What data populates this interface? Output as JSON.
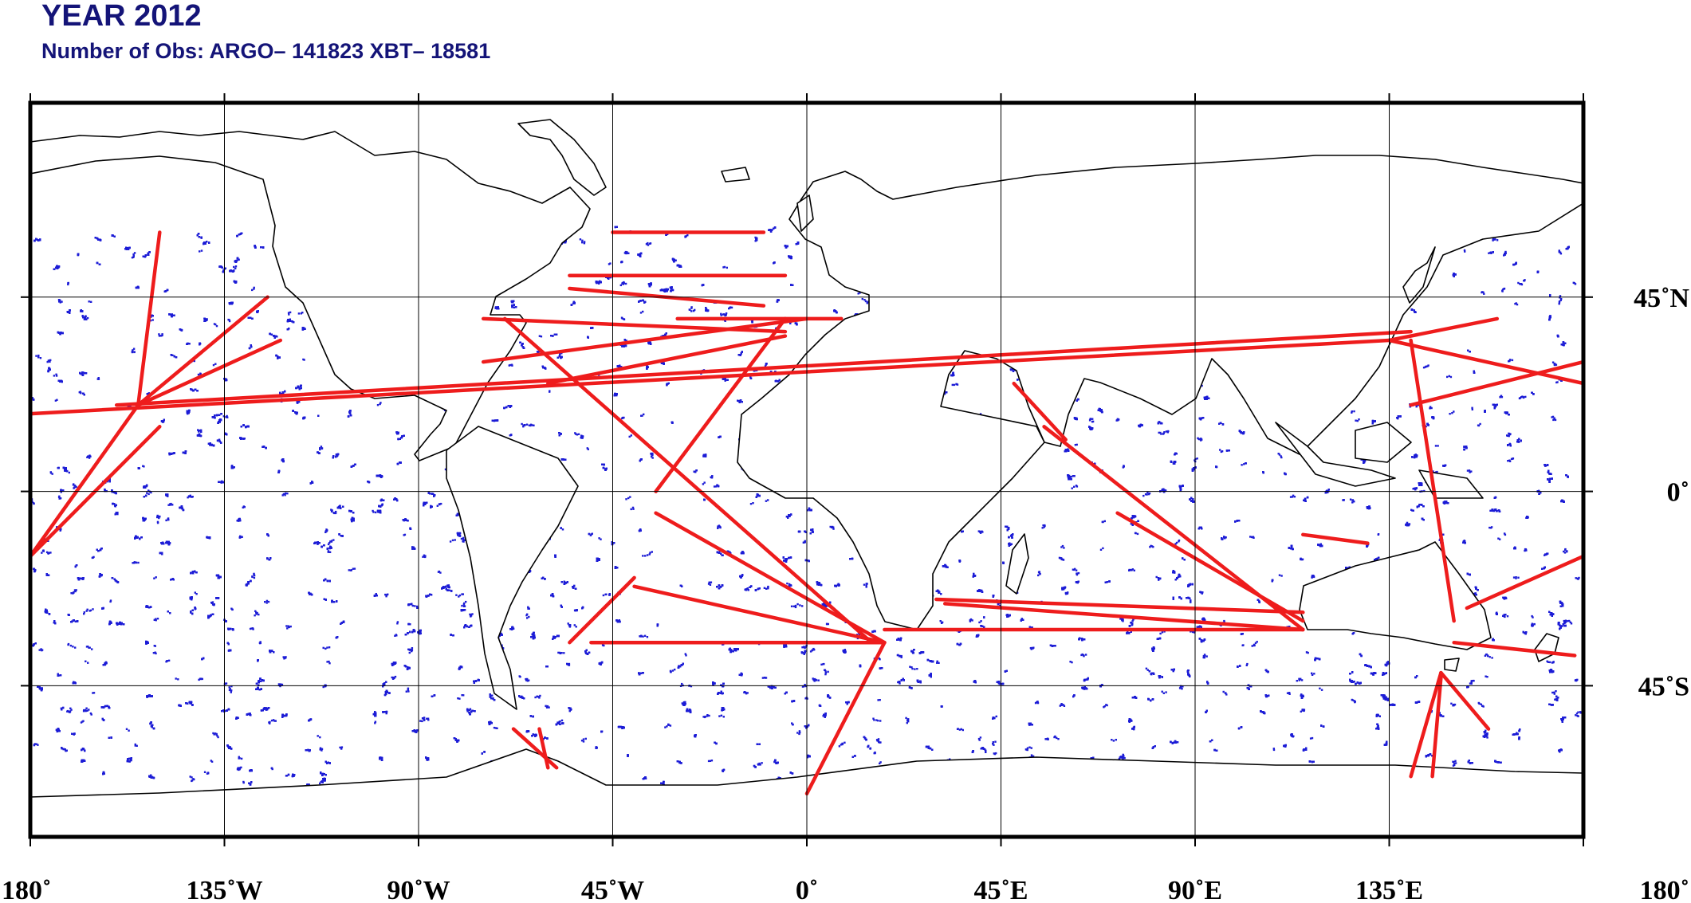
{
  "title": "YEAR 2012",
  "subtitle": "Number of Obs: ARGO– 141823 XBT– 18581",
  "colors": {
    "argo": "#1c1cd6",
    "xbt": "#ee1c1c",
    "land": "#ffffff",
    "coast": "#000000",
    "text": "#141478"
  },
  "map": {
    "projection": "plate-carree",
    "lon_range": [
      -180,
      180
    ],
    "lat_range": [
      -80,
      90
    ],
    "lon_ticks": [
      {
        "value": -180,
        "label": "180˚"
      },
      {
        "value": -135,
        "label": "135˚W"
      },
      {
        "value": -90,
        "label": "90˚W"
      },
      {
        "value": -45,
        "label": "45˚W"
      },
      {
        "value": 0,
        "label": "0˚"
      },
      {
        "value": 45,
        "label": "45˚E"
      },
      {
        "value": 90,
        "label": "90˚E"
      },
      {
        "value": 135,
        "label": "135˚E"
      },
      {
        "value": 180,
        "label": "180˚"
      }
    ],
    "lat_ticks": [
      {
        "value": 45,
        "label": "45˚N"
      },
      {
        "value": 0,
        "label": "0˚"
      },
      {
        "value": -45,
        "label": "45˚S"
      }
    ],
    "grid": true
  },
  "xbt_routes": [
    [
      [
        -30,
        40
      ],
      [
        8,
        40
      ]
    ],
    [
      [
        -75,
        40
      ],
      [
        -5,
        37
      ]
    ],
    [
      [
        -55,
        47
      ],
      [
        -10,
        43
      ]
    ],
    [
      [
        -45,
        60
      ],
      [
        -10,
        60
      ]
    ],
    [
      [
        -55,
        50
      ],
      [
        -5,
        50
      ]
    ],
    [
      [
        -75,
        30
      ],
      [
        0,
        40
      ]
    ],
    [
      [
        -70,
        40
      ],
      [
        15,
        -35
      ]
    ],
    [
      [
        -60,
        25
      ],
      [
        -5,
        36
      ]
    ],
    [
      [
        -35,
        0
      ],
      [
        -5,
        40
      ]
    ],
    [
      [
        18,
        -35
      ],
      [
        -50,
        -35
      ]
    ],
    [
      [
        18,
        -35
      ],
      [
        -40,
        -22
      ]
    ],
    [
      [
        18,
        -35
      ],
      [
        0,
        -70
      ]
    ],
    [
      [
        18,
        -35
      ],
      [
        -35,
        -5
      ]
    ],
    [
      [
        32,
        -26
      ],
      [
        115,
        -32
      ]
    ],
    [
      [
        18,
        -32
      ],
      [
        115,
        -32
      ]
    ],
    [
      [
        30,
        -25
      ],
      [
        115,
        -28
      ]
    ],
    [
      [
        55,
        15
      ],
      [
        115,
        -32
      ]
    ],
    [
      [
        48,
        25
      ],
      [
        60,
        12
      ]
    ],
    [
      [
        135,
        35
      ],
      [
        160,
        40
      ]
    ],
    [
      [
        135,
        35
      ],
      [
        180,
        25
      ]
    ],
    [
      [
        140,
        37
      ],
      [
        -160,
        20
      ]
    ],
    [
      [
        135,
        35
      ],
      [
        -180,
        18
      ]
    ],
    [
      [
        -155,
        20
      ],
      [
        -122,
        35
      ]
    ],
    [
      [
        -155,
        20
      ],
      [
        -125,
        45
      ]
    ],
    [
      [
        -155,
        20
      ],
      [
        -150,
        60
      ]
    ],
    [
      [
        -155,
        20
      ],
      [
        -180,
        -15
      ]
    ],
    [
      [
        -150,
        15
      ],
      [
        -180,
        -15
      ]
    ],
    [
      [
        115,
        -10
      ],
      [
        130,
        -12
      ]
    ],
    [
      [
        140,
        35
      ],
      [
        150,
        -30
      ]
    ],
    [
      [
        153,
        -27
      ],
      [
        180,
        -15
      ]
    ],
    [
      [
        150,
        -35
      ],
      [
        178,
        -38
      ]
    ],
    [
      [
        147,
        -42
      ],
      [
        140,
        -66
      ]
    ],
    [
      [
        147,
        -42
      ],
      [
        158,
        -55
      ]
    ],
    [
      [
        147,
        -43
      ],
      [
        145,
        -66
      ]
    ],
    [
      [
        -68,
        -55
      ],
      [
        -58,
        -64
      ]
    ],
    [
      [
        -62,
        -55
      ],
      [
        -60,
        -64
      ]
    ],
    [
      [
        -40,
        -20
      ],
      [
        -55,
        -35
      ]
    ],
    [
      [
        72,
        -5
      ],
      [
        115,
        -30
      ]
    ],
    [
      [
        140,
        20
      ],
      [
        180,
        30
      ]
    ]
  ]
}
